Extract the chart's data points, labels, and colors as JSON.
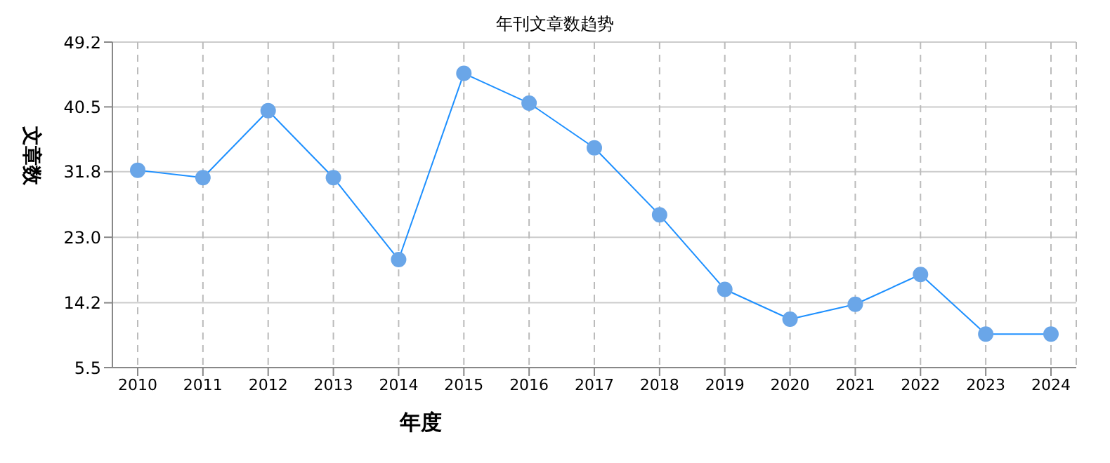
{
  "chart_data": {
    "type": "line",
    "title": "年刊文章数趋势",
    "xlabel": "年度",
    "ylabel": "文章数",
    "categories": [
      "2010",
      "2011",
      "2012",
      "2013",
      "2014",
      "2015",
      "2016",
      "2017",
      "2018",
      "2019",
      "2020",
      "2021",
      "2022",
      "2023",
      "2024"
    ],
    "series": [
      {
        "color": "#1e90ff",
        "values": [
          32,
          31,
          40,
          31,
          20,
          45,
          41,
          35,
          26,
          16,
          12,
          14,
          18,
          10,
          10
        ]
      }
    ],
    "ylim": [
      5.5,
      49.2
    ],
    "yticks": [
      5.5,
      14.2,
      {
        "value": 23,
        "label": "23.0"
      },
      31.8,
      40.5,
      49.2
    ],
    "grid": true,
    "legend": false,
    "marker": "circle",
    "line_style": "solid"
  }
}
